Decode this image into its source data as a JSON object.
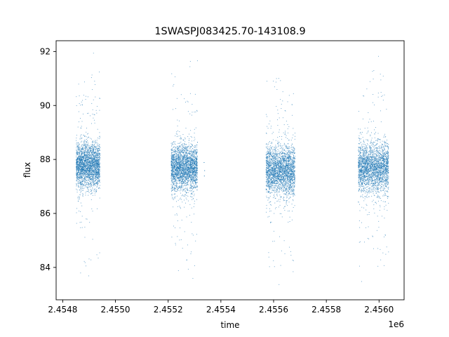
{
  "chart_data": {
    "type": "scatter",
    "title": "1SWASPJ083425.70-143108.9",
    "xlabel": "time",
    "ylabel": "flux",
    "x_offset_label": "1e6",
    "xlim": [
      2454775,
      2456095
    ],
    "ylim": [
      82.8,
      92.4
    ],
    "x_ticks": [
      2454800,
      2455000,
      2455200,
      2455400,
      2455600,
      2455800,
      2456000
    ],
    "x_tick_labels": [
      "2.4548",
      "2.4550",
      "2.4552",
      "2.4554",
      "2.4556",
      "2.4558",
      "2.4560"
    ],
    "y_ticks": [
      84,
      86,
      88,
      90,
      92
    ],
    "y_tick_labels": [
      "84",
      "86",
      "88",
      "90",
      "92"
    ],
    "grid": false,
    "marker_color": "#1f77b4",
    "series": [
      {
        "name": "",
        "segments": [
          {
            "x_start": 2454850,
            "x_end": 2454940,
            "y_center": 87.8,
            "y_core_spread": 0.7,
            "y_min": 83.4,
            "y_max": 92.0
          },
          {
            "x_start": 2455210,
            "x_end": 2455310,
            "y_center": 87.7,
            "y_core_spread": 0.7,
            "y_min": 83.3,
            "y_max": 92.0
          },
          {
            "x_start": 2455570,
            "x_end": 2455680,
            "y_center": 87.6,
            "y_core_spread": 0.75,
            "y_min": 83.3,
            "y_max": 91.5
          },
          {
            "x_start": 2455920,
            "x_end": 2456035,
            "y_center": 87.7,
            "y_core_spread": 0.75,
            "y_min": 83.4,
            "y_max": 92.0
          }
        ],
        "isolated_points": [
          [
            2455335,
            87.9
          ],
          [
            2455336,
            87.4
          ],
          [
            2455337,
            87.6
          ]
        ]
      }
    ]
  }
}
